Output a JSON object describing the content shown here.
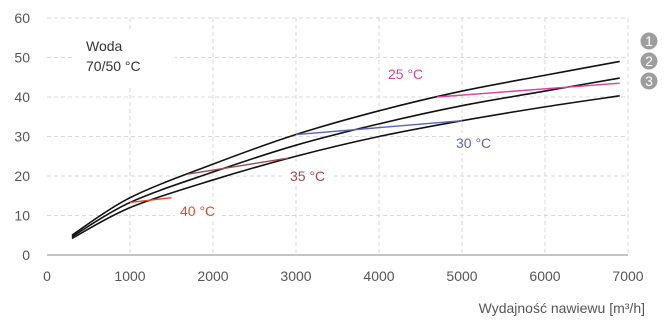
{
  "chart_data": {
    "type": "line",
    "xlabel": "Wydajność nawiewu [m³/h]",
    "ylabel": "",
    "xlim": [
      0,
      7000
    ],
    "ylim": [
      0,
      60
    ],
    "x_ticks": [
      "0",
      "1000",
      "2000",
      "3000",
      "4000",
      "5000",
      "6000",
      "7000"
    ],
    "y_ticks": [
      "0",
      "10",
      "20",
      "30",
      "40",
      "50",
      "60"
    ],
    "grid": true,
    "box_label": [
      "Woda",
      "70/50 °C"
    ],
    "series": [
      {
        "name": "1",
        "x": [
          300,
          1000,
          2000,
          3000,
          4000,
          5000,
          6000,
          6900
        ],
        "y": [
          5.0,
          14.5,
          23.0,
          30.5,
          36.5,
          41.5,
          45.5,
          49.0
        ]
      },
      {
        "name": "2",
        "x": [
          300,
          1000,
          2000,
          3000,
          4000,
          5000,
          6000,
          6900
        ],
        "y": [
          4.6,
          13.3,
          21.0,
          27.8,
          33.2,
          37.8,
          41.5,
          44.8
        ]
      },
      {
        "name": "3",
        "x": [
          300,
          1000,
          2000,
          3000,
          4000,
          5000,
          6000,
          6900
        ],
        "y": [
          4.2,
          12.0,
          19.0,
          25.0,
          30.0,
          34.0,
          37.5,
          40.3
        ]
      }
    ],
    "temperature_lines": [
      {
        "label": "40 °C",
        "color": "#e8472a",
        "x": [
          1000,
          1500
        ],
        "y": [
          13.3,
          14.5
        ]
      },
      {
        "label": "35 °C",
        "color": "#9b4a52",
        "x": [
          1700,
          2900
        ],
        "y": [
          20.5,
          24.5
        ]
      },
      {
        "label": "30 °C",
        "color": "#5a64b4",
        "x": [
          3000,
          5000
        ],
        "y": [
          30.5,
          34.0
        ]
      },
      {
        "label": "25 °C",
        "color": "#d9439a",
        "x": [
          4700,
          6900
        ],
        "y": [
          40.0,
          43.5
        ]
      }
    ],
    "markers": [
      "1",
      "2",
      "3"
    ]
  }
}
